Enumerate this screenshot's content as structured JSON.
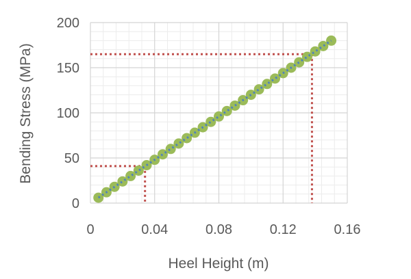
{
  "chart_data": {
    "type": "scatter",
    "xlabel": "Heel Height (m)",
    "ylabel": "Bending Stress (MPa)",
    "xlim": [
      0,
      0.16
    ],
    "ylim": [
      0,
      200
    ],
    "xticks": [
      "0",
      "0.04",
      "0.08",
      "0.12",
      "0.16"
    ],
    "yticks": [
      "0",
      "50",
      "100",
      "150",
      "200"
    ],
    "grid": true,
    "minor_grid": true,
    "legend": "none",
    "marker_color": "#9bbb59",
    "trend_color": "#4f81bd",
    "reference_color": "#c0504d",
    "series": [
      {
        "x": [
          0.005,
          0.01,
          0.015,
          0.02,
          0.025,
          0.03,
          0.035,
          0.04,
          0.045,
          0.05,
          0.055,
          0.06,
          0.065,
          0.07,
          0.075,
          0.08,
          0.085,
          0.09,
          0.095,
          0.1,
          0.105,
          0.11,
          0.115,
          0.12,
          0.125,
          0.13,
          0.135,
          0.14,
          0.145,
          0.15
        ],
        "y": [
          6,
          12,
          18,
          24,
          30,
          36,
          42,
          48,
          54,
          60,
          66,
          72,
          78,
          84,
          90,
          96,
          102,
          108,
          114,
          120,
          126,
          132,
          138,
          144,
          150,
          156,
          162,
          168,
          174,
          180
        ]
      }
    ],
    "reference_lines": [
      {
        "x": 0.034,
        "y": 41
      },
      {
        "x": 0.138,
        "y": 165
      }
    ]
  }
}
